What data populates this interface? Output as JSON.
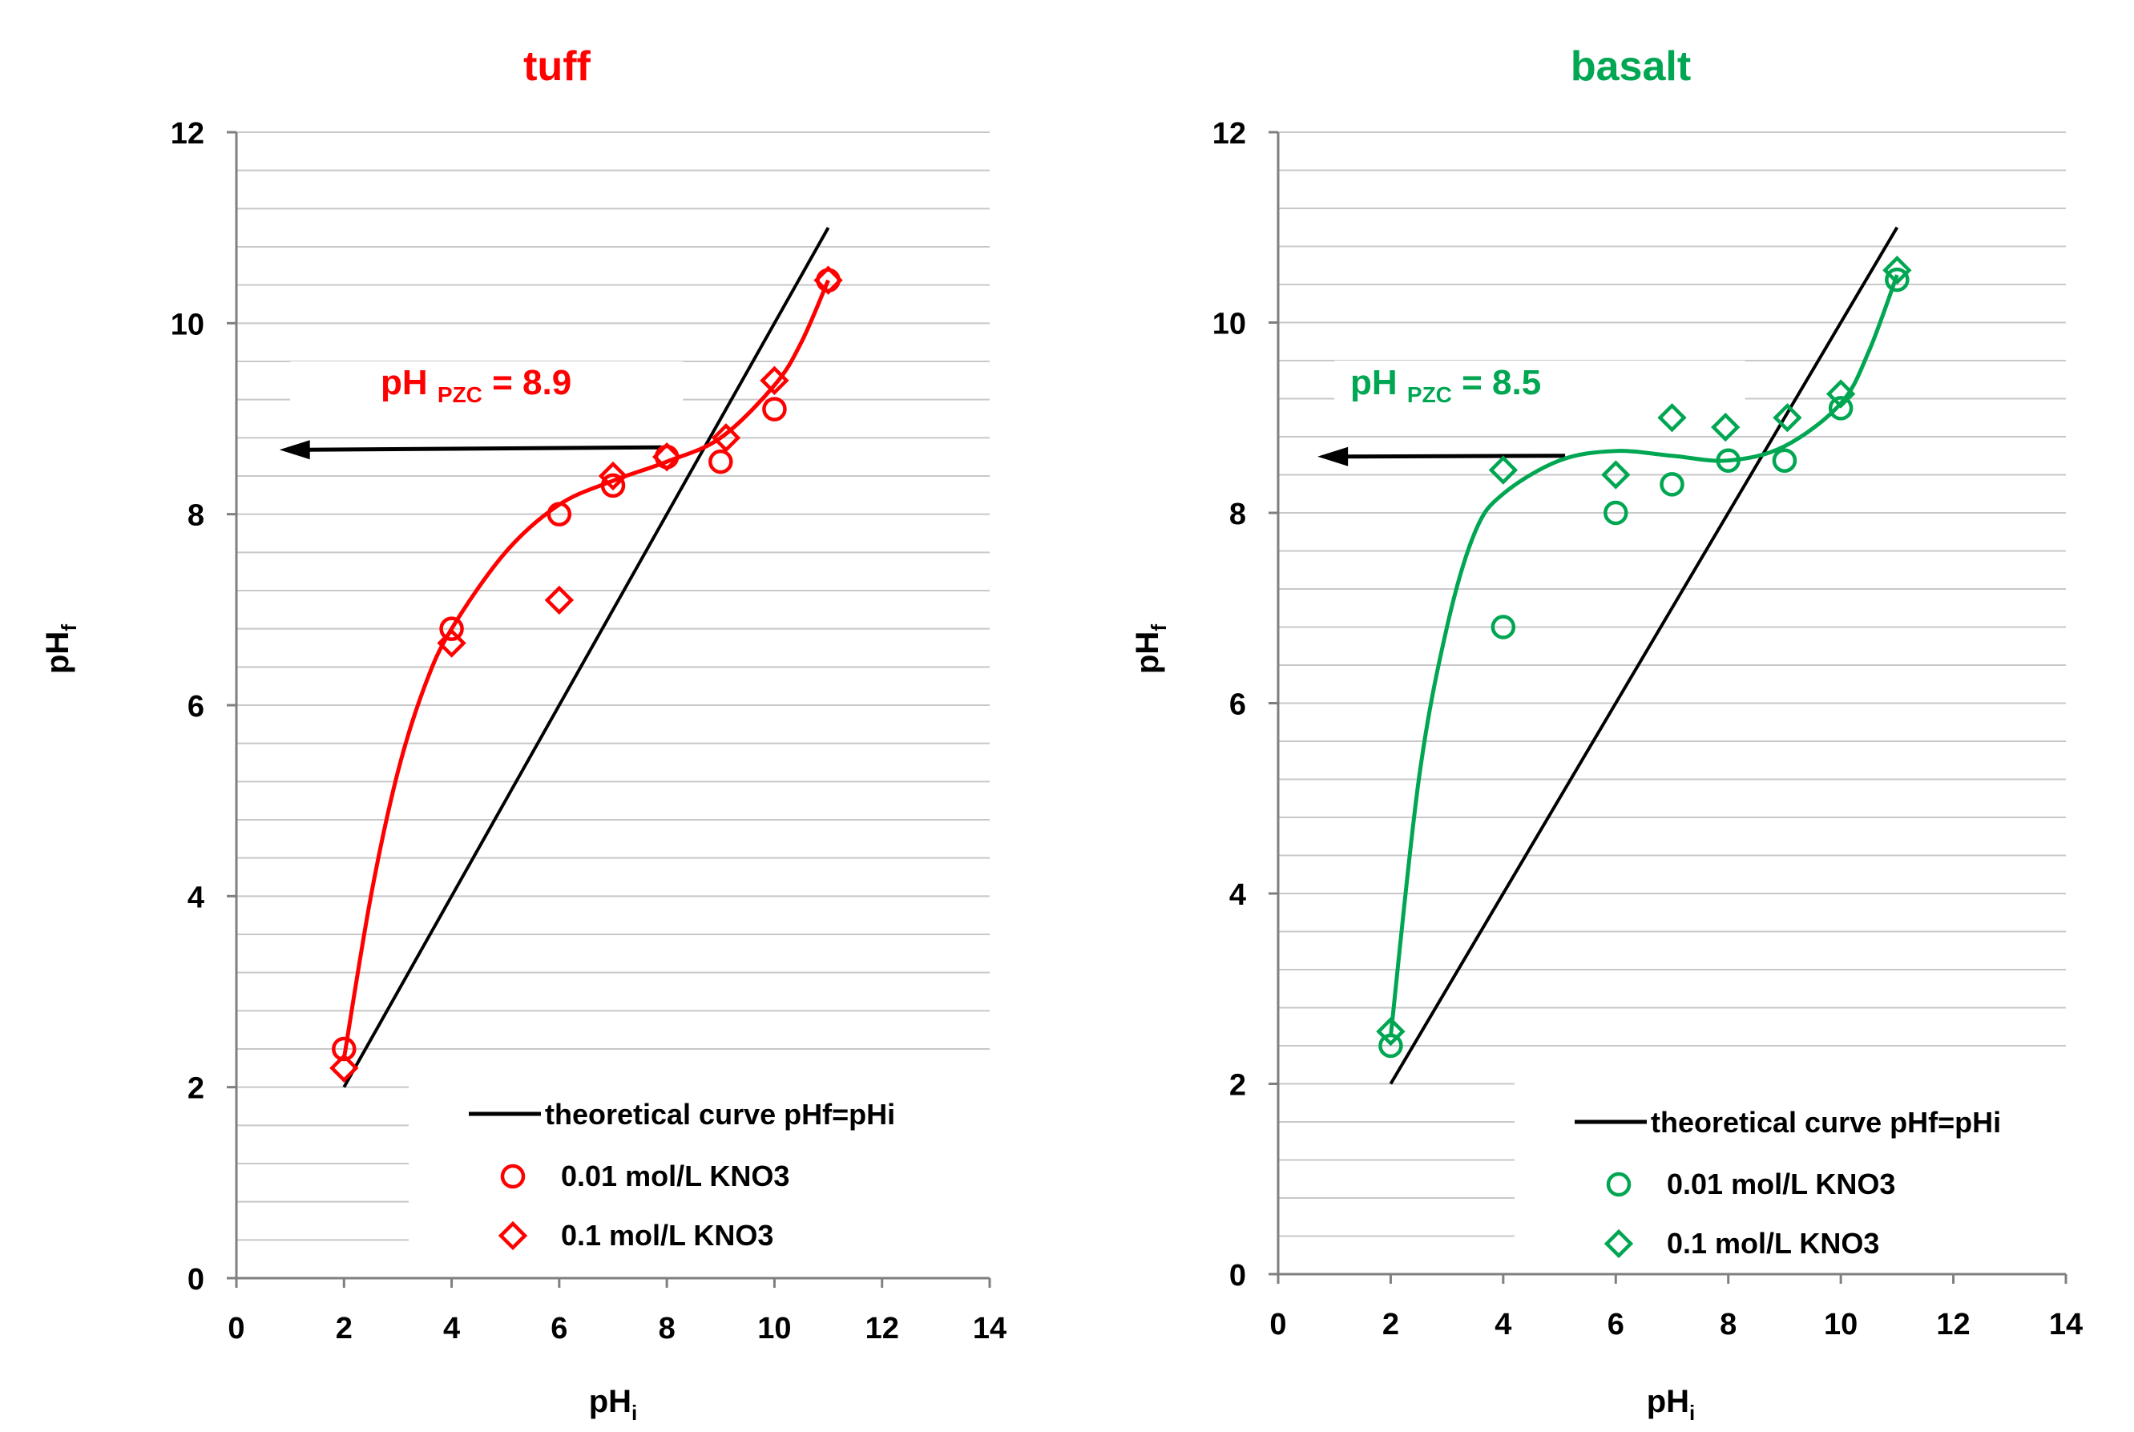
{
  "figure": {
    "legend_entries": [
      "theoretical curve pHf=pHi",
      "0.01 mol/L KNO3",
      "0.1 mol/L KNO3"
    ]
  },
  "chart_data": [
    {
      "type": "scatter",
      "title": "tuff",
      "title_color": "#ff0000",
      "annotation": {
        "label": "pH",
        "sub": "PZC",
        "value": "= 8.9",
        "pzc": 8.9,
        "arrow_from_x": 7.9,
        "arrow_to_x": 0.8,
        "arrow_y": 8.7
      },
      "xlabel": "pH",
      "xlabel_sub": "i",
      "ylabel": "pH",
      "ylabel_sub": "f",
      "xlim": [
        0,
        14
      ],
      "ylim": [
        0,
        12
      ],
      "xticks": [
        "0",
        "2",
        "4",
        "6",
        "8",
        "10",
        "12",
        "14"
      ],
      "yticks": [
        "0",
        "2",
        "4",
        "6",
        "8",
        "10",
        "12"
      ],
      "grid": true,
      "legend_position": "bottom-right",
      "series_color": "#ff0000",
      "theoretical": {
        "name": "theoretical curve pHf=pHi",
        "x": [
          2,
          11
        ],
        "y": [
          2,
          11
        ],
        "color": "#000000"
      },
      "series": [
        {
          "name": "0.01 mol/L KNO3",
          "marker": "circle",
          "x": [
            2,
            4,
            6,
            7,
            8,
            9,
            10,
            11
          ],
          "y": [
            2.4,
            6.8,
            8.0,
            8.3,
            8.6,
            8.55,
            9.1,
            10.45
          ]
        },
        {
          "name": "0.1 mol/L KNO3",
          "marker": "diamond",
          "x": [
            2,
            4,
            6,
            7,
            8,
            9.1,
            10,
            11
          ],
          "y": [
            2.2,
            6.65,
            7.1,
            8.4,
            8.6,
            8.8,
            9.4,
            10.45
          ]
        }
      ],
      "fit_curve": {
        "x": [
          2,
          2.5,
          3,
          3.5,
          4,
          5,
          6,
          7,
          8,
          9,
          10,
          10.5,
          11
        ],
        "y": [
          2.3,
          4.0,
          5.3,
          6.2,
          6.8,
          7.6,
          8.1,
          8.35,
          8.55,
          8.8,
          9.35,
          9.8,
          10.45
        ]
      }
    },
    {
      "type": "scatter",
      "title": "basalt",
      "title_color": "#00a651",
      "annotation": {
        "label": "pH",
        "sub": "PZC",
        "value": "= 8.5",
        "pzc": 8.5,
        "arrow_from_x": 5.1,
        "arrow_to_x": 0.7,
        "arrow_y": 8.6
      },
      "xlabel": "pH",
      "xlabel_sub": "i",
      "ylabel": "pH",
      "ylabel_sub": "f",
      "xlim": [
        0,
        14
      ],
      "ylim": [
        0,
        12
      ],
      "xticks": [
        "0",
        "2",
        "4",
        "6",
        "8",
        "10",
        "12",
        "14"
      ],
      "yticks": [
        "0",
        "2",
        "4",
        "6",
        "8",
        "10",
        "12"
      ],
      "grid": true,
      "legend_position": "bottom-right",
      "series_color": "#00a651",
      "theoretical": {
        "name": "theoretical curve pHf=pHi",
        "x": [
          2,
          11
        ],
        "y": [
          2,
          11
        ],
        "color": "#000000"
      },
      "series": [
        {
          "name": "0.01 mol/L KNO3",
          "marker": "circle",
          "x": [
            2,
            4,
            6,
            7,
            8,
            9,
            10,
            11
          ],
          "y": [
            2.4,
            6.8,
            8.0,
            8.3,
            8.55,
            8.55,
            9.1,
            10.45
          ]
        },
        {
          "name": "0.1 mol/L KNO3",
          "marker": "diamond",
          "x": [
            2,
            4,
            6,
            7,
            7.95,
            9.05,
            10,
            11
          ],
          "y": [
            2.55,
            8.45,
            8.4,
            9.0,
            8.9,
            9.0,
            9.25,
            10.55
          ]
        }
      ],
      "fit_curve": {
        "x": [
          2,
          2.5,
          3,
          3.5,
          4,
          5,
          6,
          7,
          8,
          9,
          10,
          10.5,
          11
        ],
        "y": [
          2.5,
          5.2,
          6.8,
          7.8,
          8.2,
          8.55,
          8.65,
          8.6,
          8.55,
          8.7,
          9.15,
          9.7,
          10.5
        ]
      }
    }
  ]
}
